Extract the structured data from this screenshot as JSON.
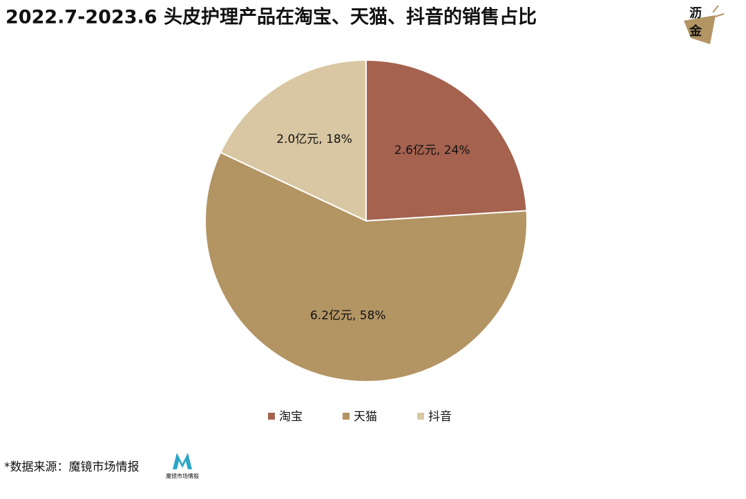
{
  "chart_data": {
    "type": "pie",
    "title": "2022.7-2023.6 头皮护理产品在淘宝、天猫、抖音的销售占比",
    "categories": [
      "淘宝",
      "天猫",
      "抖音"
    ],
    "values": [
      24,
      58,
      18
    ],
    "value_labels": [
      "2.6亿元, 24%",
      "6.2亿元, 58%",
      "2.0亿元, 18%"
    ],
    "colors": [
      "#a5624f",
      "#b39463",
      "#d9c7a3"
    ],
    "legend": "bottom"
  },
  "source": "*数据来源：魔镜市场情报",
  "brand_logo": [
    "沥",
    "金"
  ],
  "source_logo": "魔镜市场情报"
}
